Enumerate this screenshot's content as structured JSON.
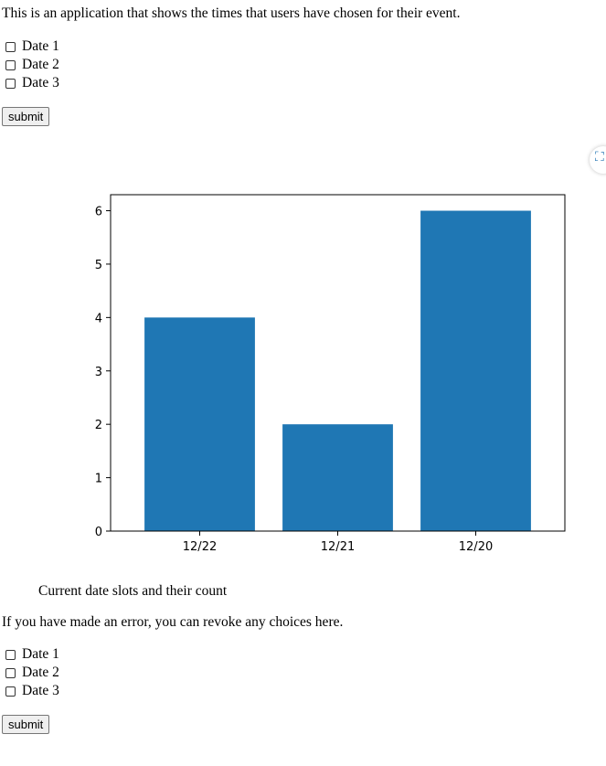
{
  "intro": "This is an application that shows the times that users have chosen for their event.",
  "form1": {
    "options": [
      "Date 1",
      "Date 2",
      "Date 3"
    ],
    "submit_label": "submit"
  },
  "chart_caption": "Current date slots and their count",
  "revoke_text": "If you have made an error, you can revoke any choices here.",
  "form2": {
    "options": [
      "Date 1",
      "Date 2",
      "Date 3"
    ],
    "submit_label": "submit"
  },
  "side_icon": "screenshot-capture-icon",
  "colors": {
    "bar": "#1f77b4",
    "button_bg": "#efefef",
    "icon_accent": "#2a7ab5"
  },
  "chart_data": {
    "type": "bar",
    "categories": [
      "12/22",
      "12/21",
      "12/20"
    ],
    "values": [
      4,
      2,
      6
    ],
    "title": "",
    "xlabel": "",
    "ylabel": "",
    "ylim": [
      0,
      6.3
    ],
    "yticks": [
      0,
      1,
      2,
      3,
      4,
      5,
      6
    ],
    "grid": false
  }
}
